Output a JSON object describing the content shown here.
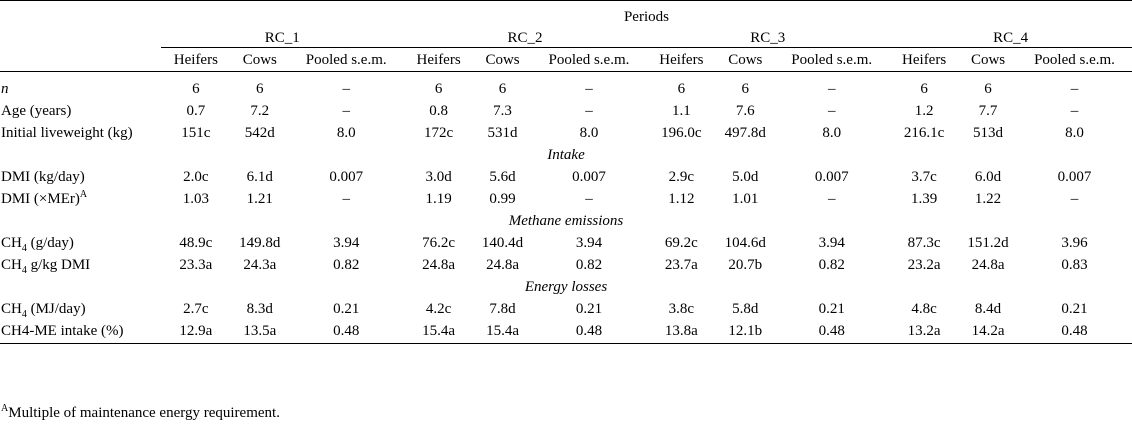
{
  "header": {
    "periods": "Periods",
    "groups": [
      "RC_1",
      "RC_2",
      "RC_3",
      "RC_4"
    ],
    "columns": [
      "Heifers",
      "Cows",
      "Pooled s.e.m."
    ]
  },
  "sections": [
    {
      "title": "",
      "rows": [
        {
          "label": "n",
          "italic": true,
          "values": [
            "6",
            "6",
            "–",
            "6",
            "6",
            "–",
            "6",
            "6",
            "–",
            "6",
            "6",
            "–"
          ]
        },
        {
          "label": "Age (years)",
          "values": [
            "0.7",
            "7.2",
            "–",
            "0.8",
            "7.3",
            "–",
            "1.1",
            "7.6",
            "–",
            "1.2",
            "7.7",
            "–"
          ]
        },
        {
          "label": "Initial liveweight (kg)",
          "values": [
            "151c",
            "542d",
            "8.0",
            "172c",
            "531d",
            "8.0",
            "196.0c",
            "497.8d",
            "8.0",
            "216.1c",
            "513d",
            "8.0"
          ]
        }
      ]
    },
    {
      "title": "Intake",
      "rows": [
        {
          "label": "DMI (kg/day)",
          "values": [
            "2.0c",
            "6.1d",
            "0.007",
            "3.0d",
            "5.6d",
            "0.007",
            "2.9c",
            "5.0d",
            "0.007",
            "3.7c",
            "6.0d",
            "0.007"
          ]
        },
        {
          "label": "DMI (×MEr)",
          "sup": "A",
          "values": [
            "1.03",
            "1.21",
            "–",
            "1.19",
            "0.99",
            "–",
            "1.12",
            "1.01",
            "–",
            "1.39",
            "1.22",
            "–"
          ]
        }
      ]
    },
    {
      "title": "Methane emissions",
      "rows": [
        {
          "label": "CH",
          "sub": "4",
          "rest": " (g/day)",
          "values": [
            "48.9c",
            "149.8d",
            "3.94",
            "76.2c",
            "140.4d",
            "3.94",
            "69.2c",
            "104.6d",
            "3.94",
            "87.3c",
            "151.2d",
            "3.96"
          ]
        },
        {
          "label": "CH",
          "sub": "4",
          "rest": " g/kg DMI",
          "values": [
            "23.3a",
            "24.3a",
            "0.82",
            "24.8a",
            "24.8a",
            "0.82",
            "23.7a",
            "20.7b",
            "0.82",
            "23.2a",
            "24.8a",
            "0.83"
          ]
        }
      ]
    },
    {
      "title": "Energy losses",
      "rows": [
        {
          "label": "CH",
          "sub": "4",
          "rest": " (MJ/day)",
          "values": [
            "2.7c",
            "8.3d",
            "0.21",
            "4.2c",
            "7.8d",
            "0.21",
            "3.8c",
            "5.8d",
            "0.21",
            "4.8c",
            "8.4d",
            "0.21"
          ]
        },
        {
          "label": "CH4-ME intake (%)",
          "values": [
            "12.9a",
            "13.5a",
            "0.48",
            "15.4a",
            "15.4a",
            "0.48",
            "13.8a",
            "12.1b",
            "0.48",
            "13.2a",
            "14.2a",
            "0.48"
          ]
        }
      ]
    }
  ],
  "footnote": {
    "marker": "A",
    "text": "Multiple of maintenance energy requirement."
  }
}
